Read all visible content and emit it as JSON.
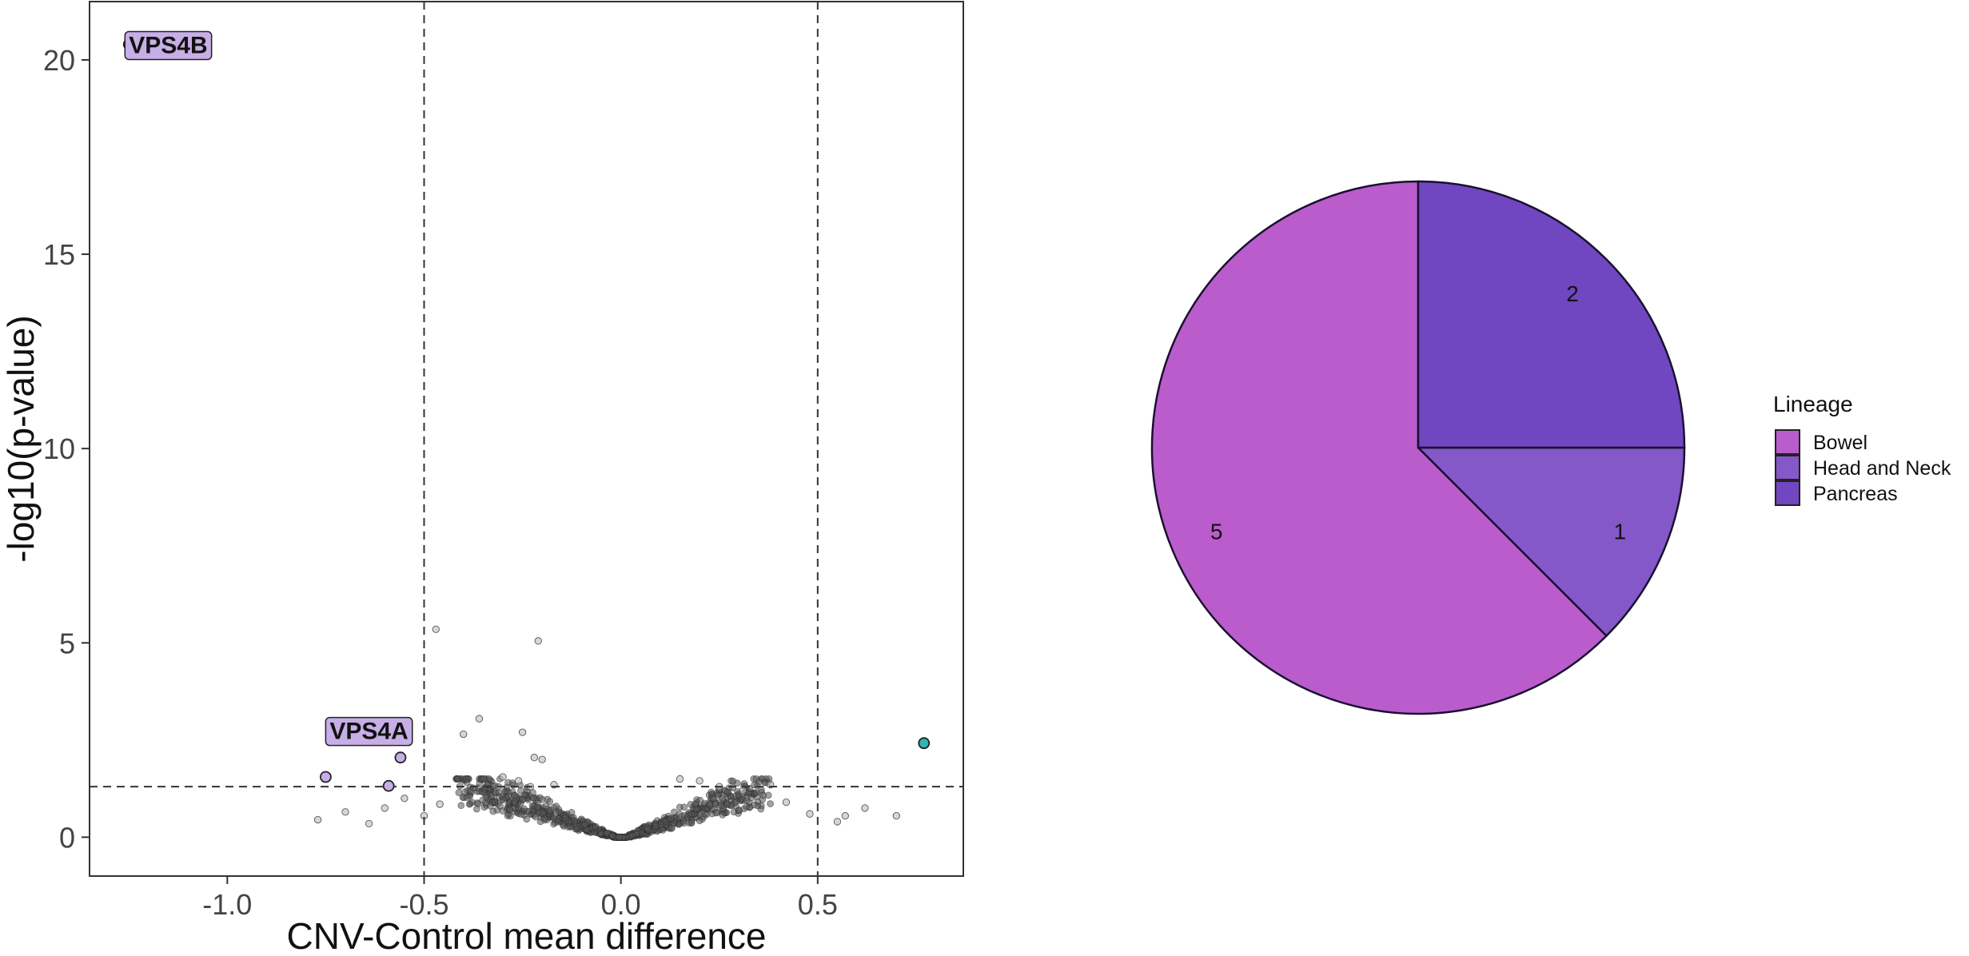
{
  "colors": {
    "bowel": "#bb5ccc",
    "head_and_neck": "#8458c8",
    "pancreas": "#7047c0",
    "label_fill": "#c7aee6",
    "up_point": "#2fb3b3",
    "background_points": "#555555"
  },
  "chart_data": [
    {
      "type": "scatter",
      "title": "",
      "xlabel": "CNV-Control mean difference",
      "ylabel": "-log10(p-value)",
      "xlim": [
        -1.35,
        0.87
      ],
      "ylim": [
        -1.0,
        21.5
      ],
      "x_ticks": [
        -1.0,
        -0.5,
        0.0,
        0.5
      ],
      "x_tick_labels": [
        "-1.0",
        "-0.5",
        "0.0",
        "0.5"
      ],
      "y_ticks": [
        0,
        5,
        10,
        15,
        20
      ],
      "y_tick_labels": [
        "0",
        "5",
        "10",
        "15",
        "20"
      ],
      "reference_lines": {
        "vertical": [
          -0.5,
          0.5
        ],
        "horizontal": [
          1.3
        ]
      },
      "grid": false,
      "highlighted_points": [
        {
          "x": -1.25,
          "y": 20.4,
          "group": "down"
        },
        {
          "x": -0.56,
          "y": 2.05,
          "group": "down"
        },
        {
          "x": -0.75,
          "y": 1.55,
          "group": "down"
        },
        {
          "x": -0.59,
          "y": 1.32,
          "group": "down"
        },
        {
          "x": 0.77,
          "y": 2.42,
          "group": "up"
        }
      ],
      "labels": [
        {
          "text": "VPS4B",
          "x": -1.15,
          "y": 20.4
        },
        {
          "text": "VPS4A",
          "x": -0.64,
          "y": 2.75
        }
      ],
      "background_outliers": [
        {
          "x": -0.47,
          "y": 5.35
        },
        {
          "x": -0.21,
          "y": 5.05
        },
        {
          "x": -0.36,
          "y": 3.05
        },
        {
          "x": -0.4,
          "y": 2.65
        },
        {
          "x": -0.25,
          "y": 2.7
        },
        {
          "x": -0.22,
          "y": 2.05
        },
        {
          "x": -0.2,
          "y": 2.0
        },
        {
          "x": -0.3,
          "y": 1.55
        },
        {
          "x": -0.26,
          "y": 1.45
        },
        {
          "x": -0.23,
          "y": 1.3
        },
        {
          "x": -0.17,
          "y": 1.35
        },
        {
          "x": -0.6,
          "y": 0.75
        },
        {
          "x": -0.7,
          "y": 0.65
        },
        {
          "x": -0.77,
          "y": 0.45
        },
        {
          "x": -0.64,
          "y": 0.35
        },
        {
          "x": -0.55,
          "y": 1.0
        },
        {
          "x": -0.5,
          "y": 0.55
        },
        {
          "x": -0.46,
          "y": 0.85
        },
        {
          "x": 0.15,
          "y": 1.5
        },
        {
          "x": 0.2,
          "y": 1.45
        },
        {
          "x": 0.25,
          "y": 1.3
        },
        {
          "x": 0.31,
          "y": 1.2
        },
        {
          "x": 0.38,
          "y": 1.35
        },
        {
          "x": 0.42,
          "y": 0.9
        },
        {
          "x": 0.48,
          "y": 0.6
        },
        {
          "x": 0.57,
          "y": 0.55
        },
        {
          "x": 0.62,
          "y": 0.75
        },
        {
          "x": 0.7,
          "y": 0.55
        },
        {
          "x": 0.55,
          "y": 0.4
        }
      ]
    },
    {
      "type": "pie",
      "title": "",
      "legend_title": "Lineage",
      "legend_position": "right",
      "slices": [
        {
          "label": "Head and Neck",
          "value": 1,
          "color_key": "head_and_neck"
        },
        {
          "label": "Bowel",
          "value": 5,
          "color_key": "bowel"
        },
        {
          "label": "Pancreas",
          "value": 2,
          "color_key": "pancreas"
        }
      ],
      "legend_entries": [
        "Bowel",
        "Head and Neck",
        "Pancreas"
      ],
      "legend_color_keys": [
        "bowel",
        "head_and_neck",
        "pancreas"
      ]
    }
  ]
}
